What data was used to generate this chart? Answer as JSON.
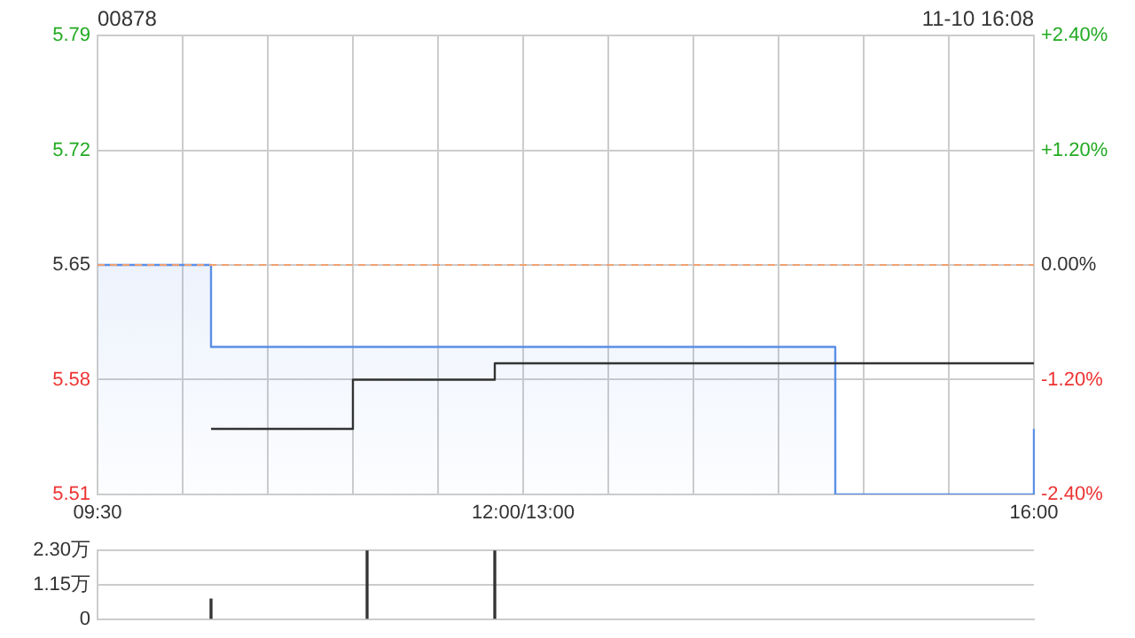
{
  "chart_data": [
    {
      "type": "step",
      "title": "00878",
      "annotations": [
        "11-10 16:08"
      ],
      "categories": [
        "09:30",
        null,
        null,
        null,
        null,
        null,
        null,
        null,
        null,
        null,
        null,
        null,
        null,
        null,
        null,
        null,
        null,
        null,
        null,
        null,
        null,
        null,
        null,
        null,
        null,
        null,
        null,
        null,
        null,
        null,
        "12:00/13:00",
        null,
        null,
        null,
        null,
        null,
        null,
        null,
        null,
        null,
        null,
        null,
        null,
        null,
        null,
        null,
        null,
        null,
        null,
        null,
        null,
        null,
        null,
        null,
        null,
        null,
        null,
        null,
        null,
        null,
        null,
        null,
        null,
        null,
        null,
        null,
        "16:00"
      ],
      "ylim": [
        5.51,
        5.79
      ],
      "yticks": [
        5.51,
        5.58,
        5.65,
        5.72,
        5.79
      ],
      "y2lim": [
        -2.4,
        2.4
      ],
      "y2ticks": [
        {
          "value": -2.4,
          "label": "-2.40%"
        },
        {
          "value": -1.2,
          "label": "-1.20%"
        },
        {
          "value": 0,
          "label": "0.00%"
        },
        {
          "value": 1.2,
          "label": "+1.20%"
        },
        {
          "value": 2.4,
          "label": "+2.40%"
        }
      ],
      "ref_lines": [
        {
          "axis": "y",
          "value": 5.65,
          "color": "#f0a070",
          "line_style": "dashed"
        }
      ],
      "grid": true,
      "legend": false,
      "series": [
        {
          "type": "area",
          "color": "#5b8fe8",
          "values": [
            5.65,
            5.65,
            5.65,
            5.65,
            5.65,
            5.65,
            5.65,
            5.65,
            5.6,
            5.6,
            5.6,
            5.6,
            5.6,
            5.6,
            5.6,
            5.6,
            5.6,
            5.6,
            5.6,
            5.6,
            5.6,
            5.6,
            5.6,
            5.6,
            5.6,
            5.6,
            5.6,
            5.6,
            5.6,
            5.6,
            5.6,
            5.6,
            5.6,
            5.6,
            5.6,
            5.6,
            5.6,
            5.6,
            5.6,
            5.6,
            5.6,
            5.6,
            5.6,
            5.6,
            5.6,
            5.6,
            5.6,
            5.6,
            5.6,
            5.6,
            5.6,
            5.6,
            5.51,
            5.51,
            5.51,
            5.51,
            5.51,
            5.51,
            5.51,
            5.51,
            5.51,
            5.51,
            5.51,
            5.51,
            5.51,
            5.51,
            5.55
          ]
        },
        {
          "type": "step",
          "color": "#333333",
          "values": [
            null,
            null,
            null,
            null,
            null,
            null,
            null,
            null,
            5.55,
            5.55,
            5.55,
            5.55,
            5.55,
            5.55,
            5.55,
            5.55,
            5.55,
            5.55,
            5.58,
            5.58,
            5.58,
            5.58,
            5.58,
            5.58,
            5.58,
            5.58,
            5.58,
            5.58,
            5.59,
            5.59,
            5.59,
            5.59,
            5.59,
            5.59,
            5.59,
            5.59,
            5.59,
            5.59,
            5.59,
            5.59,
            5.59,
            5.59,
            5.59,
            5.59,
            5.59,
            5.59,
            5.59,
            5.59,
            5.59,
            5.59,
            5.59,
            5.59,
            5.59,
            5.59,
            5.59,
            5.59,
            5.59,
            5.59,
            5.59,
            5.59,
            5.59,
            5.59,
            5.59,
            5.59,
            5.59,
            5.59,
            5.59
          ]
        }
      ]
    },
    {
      "type": "bar",
      "categories": [
        null,
        null,
        null,
        null,
        null,
        null,
        null,
        null,
        null,
        null,
        null,
        null,
        null,
        null,
        null,
        null,
        null,
        null,
        null,
        null,
        null,
        null,
        null,
        null,
        null,
        null,
        null,
        null,
        null,
        null,
        null,
        null,
        null,
        null,
        null,
        null,
        null,
        null,
        null,
        null,
        null,
        null,
        null,
        null,
        null,
        null,
        null,
        null,
        null,
        null,
        null,
        null,
        null,
        null,
        null,
        null,
        null,
        null,
        null,
        null,
        null,
        null,
        null,
        null,
        null,
        null,
        null
      ],
      "ylim": [
        0,
        2.3
      ],
      "yticks": [
        0,
        {
          "value": 1.15,
          "label": "1.15万"
        },
        {
          "value": 2.3,
          "label": "2.30万"
        }
      ],
      "tick_labels": "y",
      "grid": "y",
      "legend": false,
      "series": [
        {
          "color": "#333333",
          "values": [
            null,
            null,
            null,
            null,
            null,
            null,
            null,
            null,
            0.67,
            null,
            null,
            null,
            null,
            null,
            null,
            null,
            null,
            null,
            null,
            2.3,
            null,
            null,
            null,
            null,
            null,
            null,
            null,
            null,
            2.3,
            null,
            null,
            null,
            null,
            null,
            null,
            null,
            null,
            null,
            null,
            null,
            null,
            null,
            null,
            null,
            null,
            null,
            null,
            null,
            null,
            null,
            null,
            null,
            null,
            null,
            null,
            null,
            null,
            null,
            null,
            null,
            null,
            null,
            null,
            null,
            null,
            null,
            null
          ]
        }
      ]
    }
  ]
}
